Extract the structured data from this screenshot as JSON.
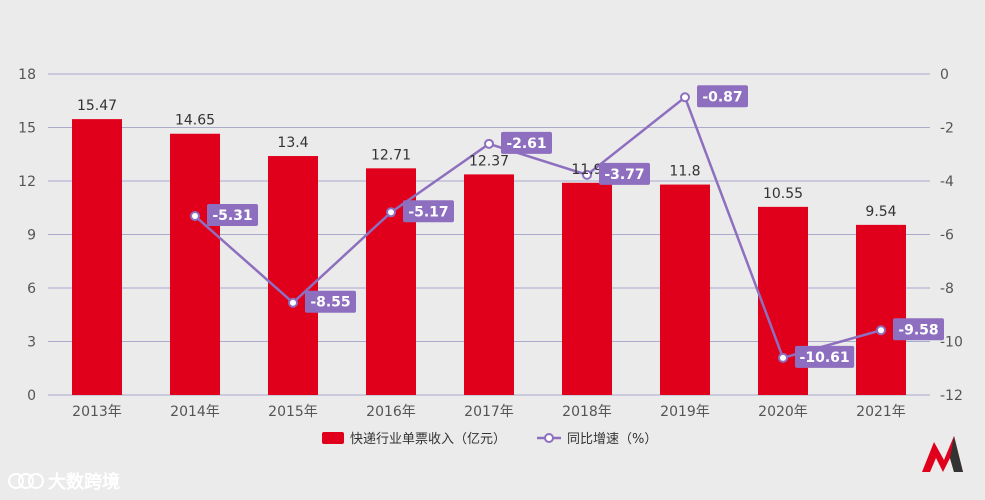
{
  "chart_data": {
    "type": "bar",
    "categories": [
      "2013年",
      "2014年",
      "2015年",
      "2016年",
      "2017年",
      "2018年",
      "2019年",
      "2020年",
      "2021年"
    ],
    "series": [
      {
        "name": "快递行业单票收入（亿元）",
        "type": "bar",
        "axis": "left",
        "color": "#e0001b",
        "values": [
          15.47,
          14.65,
          13.4,
          12.71,
          12.37,
          11.9,
          11.8,
          10.55,
          9.54
        ],
        "labels": [
          "15.47",
          "14.65",
          "13.4",
          "12.71",
          "12.37",
          "11.9",
          "11.8",
          "10.55",
          "9.54"
        ]
      },
      {
        "name": "同比增速（%）",
        "type": "line",
        "axis": "right",
        "color": "#8e6fbf",
        "values": [
          null,
          -5.31,
          -8.55,
          -5.17,
          -2.61,
          -3.77,
          -0.87,
          -10.61,
          -9.58
        ],
        "labels": [
          "",
          "-5.31",
          "-8.55",
          "-5.17",
          "-2.61",
          "-3.77",
          "-0.87",
          "-10.61",
          "-9.58"
        ]
      }
    ],
    "y_left": {
      "min": 0,
      "max": 18,
      "ticks": [
        "0",
        "3",
        "6",
        "9",
        "12",
        "15",
        "18"
      ]
    },
    "y_right": {
      "min": -12,
      "max": 0,
      "ticks": [
        "0",
        "-2",
        "-4",
        "-6",
        "-8",
        "-10",
        "-12"
      ]
    },
    "grid": true,
    "legend_position": "bottom"
  },
  "watermark": {
    "text": "大数跨境"
  },
  "colors": {
    "background": "#ebebeb",
    "grid": "#aaaacc",
    "bar": "#e0001b",
    "line": "#8e6fbf"
  }
}
